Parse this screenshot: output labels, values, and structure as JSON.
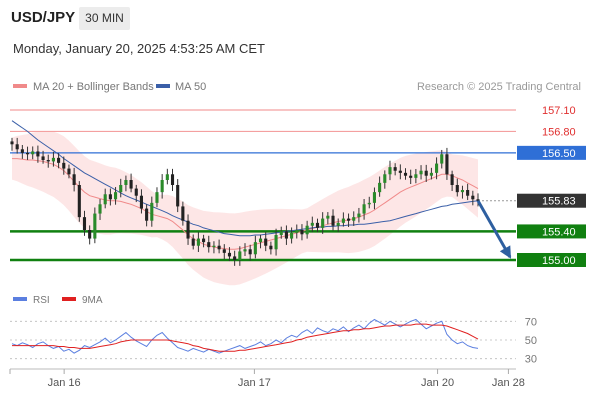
{
  "header": {
    "symbol": "USD/JPY",
    "timeframe": "30 MIN",
    "datetime": "Monday, January 20, 2025 4:53:25 AM CET"
  },
  "chart_data": [
    {
      "type": "candlestick",
      "legend": [
        {
          "name": "MA 20 + Bollinger Bands",
          "color": "#f08a8a"
        },
        {
          "name": "MA 50",
          "color": "#3a5fa8"
        }
      ],
      "credit": "Research © 2025 Trading Central",
      "ylim": [
        154.65,
        157.45
      ],
      "levels": [
        {
          "label": "157.10",
          "value": 157.1,
          "kind": "resistance",
          "color": "#f4a0a0"
        },
        {
          "label": "156.80",
          "value": 156.8,
          "kind": "resistance",
          "color": "#f4a0a0"
        },
        {
          "label": "156.50",
          "value": 156.5,
          "kind": "pivot",
          "color": "#2f6fd6"
        },
        {
          "label": "155.83",
          "value": 155.83,
          "kind": "last",
          "color": "#333333"
        },
        {
          "label": "155.40",
          "value": 155.4,
          "kind": "support",
          "color": "#108010"
        },
        {
          "label": "155.00",
          "value": 155.0,
          "kind": "support",
          "color": "#108010"
        }
      ],
      "forecast": {
        "from": 155.83,
        "to": 155.0,
        "color": "#2e5fa0"
      },
      "close_series": [
        156.62,
        156.55,
        156.5,
        156.48,
        156.52,
        156.45,
        156.4,
        156.38,
        156.43,
        156.36,
        156.28,
        156.2,
        156.05,
        155.6,
        155.42,
        155.3,
        155.65,
        155.78,
        155.92,
        155.85,
        155.95,
        156.05,
        156.12,
        156.0,
        155.9,
        155.72,
        155.55,
        155.8,
        155.95,
        156.12,
        156.2,
        156.05,
        155.75,
        155.55,
        155.3,
        155.2,
        155.3,
        155.25,
        155.18,
        155.2,
        155.15,
        155.1,
        155.05,
        155.0,
        155.12,
        155.15,
        155.08,
        155.25,
        155.3,
        155.2,
        155.15,
        155.35,
        155.4,
        155.3,
        155.38,
        155.42,
        155.36,
        155.48,
        155.52,
        155.45,
        155.58,
        155.62,
        155.48,
        155.52,
        155.58,
        155.55,
        155.6,
        155.65,
        155.78,
        155.8,
        155.95,
        156.08,
        156.2,
        156.3,
        156.25,
        156.22,
        156.18,
        156.15,
        156.2,
        156.25,
        156.18,
        156.22,
        156.35,
        156.48,
        156.2,
        156.05,
        155.95,
        155.98,
        155.9,
        155.85,
        155.83
      ],
      "ma20": [
        156.42,
        156.42,
        156.41,
        156.4,
        156.4,
        156.39,
        156.38,
        156.36,
        156.34,
        156.3,
        156.25,
        156.18,
        156.1,
        156.02,
        155.95,
        155.9,
        155.88,
        155.86,
        155.84,
        155.83,
        155.83,
        155.82,
        155.8,
        155.78,
        155.75,
        155.72,
        155.68,
        155.64,
        155.62,
        155.6,
        155.58,
        155.54,
        155.48,
        155.42,
        155.35,
        155.3,
        155.26,
        155.22,
        155.2,
        155.18,
        155.17,
        155.16,
        155.15,
        155.15,
        155.16,
        155.18,
        155.2,
        155.22,
        155.24,
        155.26,
        155.28,
        155.3,
        155.32,
        155.34,
        155.36,
        155.38,
        155.4,
        155.42,
        155.44,
        155.46,
        155.48,
        155.5,
        155.52,
        155.54,
        155.55,
        155.56,
        155.58,
        155.6,
        155.63,
        155.66,
        155.7,
        155.75,
        155.8,
        155.85,
        155.9,
        155.95,
        155.99,
        156.02,
        156.05,
        156.08,
        156.11,
        156.14,
        156.17,
        156.2,
        156.2,
        156.18,
        156.15,
        156.12,
        156.08,
        156.04,
        156.0
      ],
      "ma50": [
        156.95,
        156.9,
        156.85,
        156.8,
        156.74,
        156.68,
        156.63,
        156.58,
        156.53,
        156.48,
        156.42,
        156.37,
        156.32,
        156.27,
        156.22,
        156.18,
        156.14,
        156.1,
        156.06,
        156.02,
        155.98,
        155.94,
        155.9,
        155.87,
        155.84,
        155.81,
        155.78,
        155.75,
        155.72,
        155.69,
        155.66,
        155.62,
        155.59,
        155.56,
        155.53,
        155.5,
        155.48,
        155.45,
        155.43,
        155.41,
        155.39,
        155.37,
        155.36,
        155.35,
        155.34,
        155.34,
        155.34,
        155.35,
        155.35,
        155.36,
        155.37,
        155.38,
        155.39,
        155.4,
        155.41,
        155.42,
        155.43,
        155.44,
        155.45,
        155.46,
        155.46,
        155.47,
        155.47,
        155.48,
        155.48,
        155.49,
        155.49,
        155.5,
        155.5,
        155.51,
        155.52,
        155.53,
        155.54,
        155.55,
        155.57,
        155.59,
        155.61,
        155.63,
        155.65,
        155.67,
        155.69,
        155.71,
        155.73,
        155.75,
        155.76,
        155.78,
        155.79,
        155.8,
        155.81,
        155.82,
        155.83
      ],
      "bollinger": {
        "upper_offset": 0.42,
        "lower_offset": 0.42
      },
      "x_ticks": [
        {
          "label": "Jan 16",
          "pos": 0.107
        },
        {
          "label": "Jan 17",
          "pos": 0.483
        },
        {
          "label": "Jan 20",
          "pos": 0.845
        },
        {
          "label": "Jan 28",
          "pos": 0.985
        }
      ]
    },
    {
      "type": "line",
      "legend": [
        {
          "name": "RSI",
          "color": "#5b7fe0"
        },
        {
          "name": "9MA",
          "color": "#e02020"
        }
      ],
      "ylim": [
        20,
        80
      ],
      "y_ticks": [
        "70",
        "50",
        "30"
      ],
      "y_tick_values": [
        70,
        50,
        30
      ],
      "rsi": [
        46,
        44,
        47,
        45,
        42,
        46,
        48,
        44,
        41,
        43,
        38,
        40,
        36,
        39,
        44,
        42,
        45,
        48,
        52,
        47,
        50,
        54,
        58,
        53,
        49,
        46,
        43,
        50,
        55,
        58,
        52,
        47,
        42,
        40,
        38,
        41,
        39,
        37,
        40,
        38,
        36,
        38,
        40,
        42,
        44,
        41,
        43,
        45,
        48,
        44,
        46,
        50,
        47,
        52,
        55,
        53,
        58,
        61,
        57,
        63,
        60,
        58,
        62,
        60,
        64,
        59,
        63,
        66,
        62,
        68,
        72,
        69,
        66,
        70,
        67,
        64,
        67,
        70,
        72,
        67,
        62,
        65,
        68,
        70,
        56,
        50,
        46,
        48,
        44,
        42,
        41
      ],
      "ma9": [
        44,
        44,
        44,
        44,
        44,
        44,
        44,
        44,
        44,
        43,
        43,
        42,
        42,
        41,
        41,
        41,
        42,
        43,
        44,
        45,
        46,
        48,
        49,
        50,
        50,
        50,
        50,
        50,
        50,
        50,
        50,
        49,
        48,
        47,
        46,
        44,
        43,
        41,
        40,
        39,
        38,
        38,
        38,
        38,
        39,
        39,
        40,
        41,
        42,
        43,
        44,
        45,
        46,
        47,
        48,
        50,
        51,
        53,
        54,
        55,
        56,
        57,
        58,
        59,
        60,
        60,
        61,
        61,
        62,
        62,
        63,
        64,
        65,
        65,
        66,
        66,
        66,
        66,
        67,
        67,
        67,
        66,
        66,
        66,
        65,
        63,
        61,
        59,
        57,
        54,
        51
      ]
    }
  ]
}
